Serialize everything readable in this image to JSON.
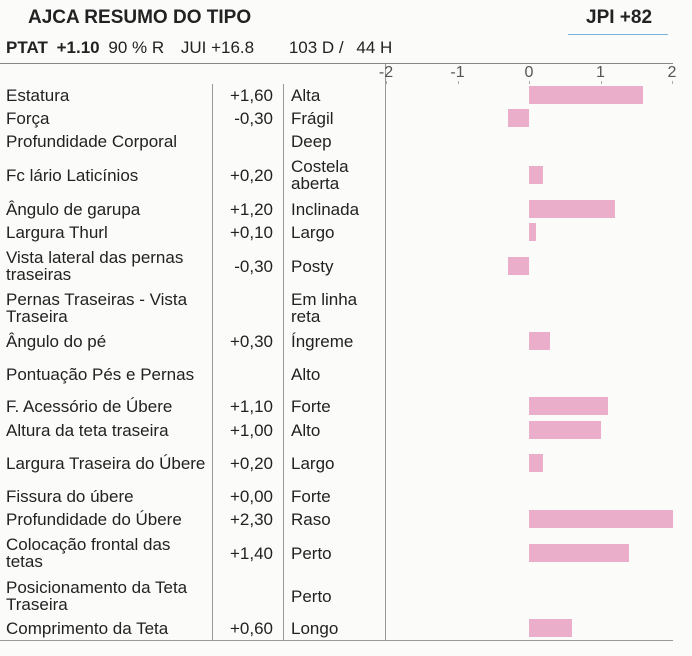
{
  "header": {
    "title": "AJCA RESUMO DO TIPO",
    "jpi": "JPI +82",
    "ptat_label": "PTAT",
    "ptat_value": "+1.10",
    "reliability": "90 % R",
    "jui": "JUI +16.8",
    "daughters": "103 D /",
    "herds": "44 H"
  },
  "chart_data": {
    "type": "bar",
    "orientation": "horizontal",
    "color": "#eaaecb",
    "categories": [
      "Estatura",
      "Força",
      "Profundidade Corporal",
      "Fc lário Laticínios",
      "Ângulo de garupa",
      "Largura Thurl",
      "Vista lateral das pernas traseiras",
      "Pernas Traseiras - Vista Traseira",
      "Ângulo do pé",
      "Pontuação Pés e Pernas",
      "F. Acessório de Úbere",
      "Altura da teta traseira",
      "Largura Traseira do Úbere",
      "Fissura do úbere",
      "Profundidade do Úbere",
      "Colocação frontal das tetas",
      "Posicionamento da Teta Traseira",
      "Comprimento da Teta"
    ],
    "values": [
      1.6,
      -0.3,
      null,
      0.2,
      1.2,
      0.1,
      -0.3,
      null,
      0.3,
      null,
      1.1,
      1.0,
      0.2,
      0.0,
      2.3,
      1.4,
      null,
      0.6
    ],
    "value_labels": [
      "+1,60",
      "-0,30",
      null,
      "+0,20",
      "+1,20",
      "+0,10",
      "-0,30",
      null,
      "+0,30",
      null,
      "+1,10",
      "+1,00",
      "+0,20",
      "+0,00",
      "+2,30",
      "+1,40",
      null,
      "+0,60"
    ],
    "descriptors": [
      "Alta",
      "Frágil",
      "Deep",
      "Costela aberta",
      "Inclinada",
      "Largo",
      "Posty",
      "Em linha reta",
      "Íngreme",
      "Alto",
      "Forte",
      "Alto",
      "Largo",
      "Forte",
      "Raso",
      "Perto",
      "Perto",
      "Longo"
    ],
    "xlim": [
      -2,
      2
    ],
    "xticks": [
      -2,
      -1,
      0,
      1,
      2
    ]
  }
}
